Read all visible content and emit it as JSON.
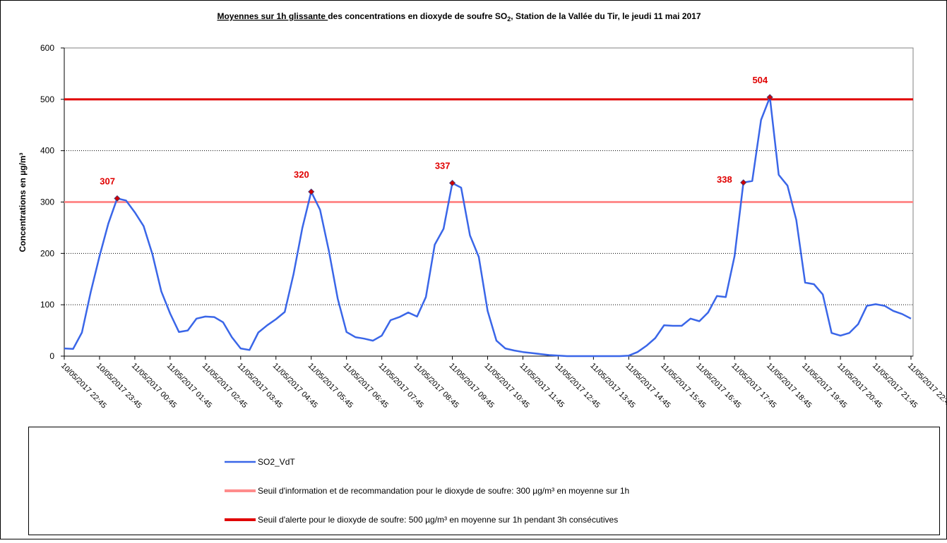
{
  "chart_data": {
    "type": "line",
    "title_parts": [
      "Moyennes sur 1h glissante ",
      "des concentrations en dioxyde de soufre SO",
      "2",
      ", Station de la Vallée du Tir,  le jeudi 11 mai 2017"
    ],
    "y_label": "Concentrations en µg/m³",
    "ylim": [
      0,
      600
    ],
    "yticks": [
      0,
      100,
      200,
      300,
      400,
      500,
      600
    ],
    "grid": true,
    "categories": [
      "10/05/2017 22:45",
      null,
      null,
      null,
      "10/05/2017 23:45",
      null,
      null,
      null,
      "11/05/2017 00:45",
      null,
      null,
      null,
      "11/05/2017 01:45",
      null,
      null,
      null,
      "11/05/2017 02:45",
      null,
      null,
      null,
      "11/05/2017 03:45",
      null,
      null,
      null,
      "11/05/2017 04:45",
      null,
      null,
      null,
      "11/05/2017 05:45",
      null,
      null,
      null,
      "11/05/2017 06:45",
      null,
      null,
      null,
      "11/05/2017 07:45",
      null,
      null,
      null,
      "11/05/2017 08:45",
      null,
      null,
      null,
      "11/05/2017 09:45",
      null,
      null,
      null,
      "11/05/2017 10:45",
      null,
      null,
      null,
      "11/05/2017 11:45",
      null,
      null,
      null,
      "11/05/2017 12:45",
      null,
      null,
      null,
      "11/05/2017 13:45",
      null,
      null,
      null,
      "11/05/2017 14:45",
      null,
      null,
      null,
      "11/05/2017 15:45",
      null,
      null,
      null,
      "11/05/2017 16:45",
      null,
      null,
      null,
      "11/05/2017 17:45",
      null,
      null,
      null,
      "11/05/2017 18:45",
      null,
      null,
      null,
      "11/05/2017 19:45",
      null,
      null,
      null,
      "11/05/2017 20:45",
      null,
      null,
      null,
      "11/05/2017 21:45",
      null,
      null,
      null,
      "11/05/2017 22:45"
    ],
    "series": [
      {
        "name": "SO2_VdT",
        "color": "#3a66e8",
        "values": [
          15,
          14,
          46,
          125,
          195,
          258,
          307,
          303,
          280,
          253,
          198,
          126,
          83,
          47,
          50,
          73,
          77,
          76,
          66,
          37,
          15,
          12,
          46,
          60,
          72,
          86,
          160,
          250,
          320,
          285,
          205,
          112,
          47,
          37,
          34,
          30,
          40,
          70,
          76,
          85,
          77,
          115,
          217,
          248,
          337,
          328,
          235,
          193,
          88,
          30,
          15,
          11,
          8,
          6,
          4,
          2,
          1,
          0,
          0,
          0,
          0,
          0,
          0,
          0,
          1,
          8,
          20,
          35,
          60,
          59,
          59,
          73,
          68,
          85,
          117,
          115,
          195,
          338,
          341,
          460,
          504,
          353,
          332,
          265,
          143,
          140,
          120,
          45,
          40,
          45,
          62,
          98,
          101,
          98,
          88,
          82,
          73
        ],
        "labeled_indices": [
          6,
          28,
          44,
          77,
          80
        ]
      }
    ],
    "reference_lines": [
      {
        "name": "Seuil d'information et de recommandation pour le dioxyde de soufre: 300 µg/m³ en moyenne sur 1h",
        "value": 300,
        "color": "#ff8c8c"
      },
      {
        "name": "Seuil d'alerte pour le dioxyde de soufre: 500 µg/m³ en moyenne sur 1h pendant 3h consécutives",
        "value": 500,
        "color": "#e00000"
      }
    ]
  }
}
